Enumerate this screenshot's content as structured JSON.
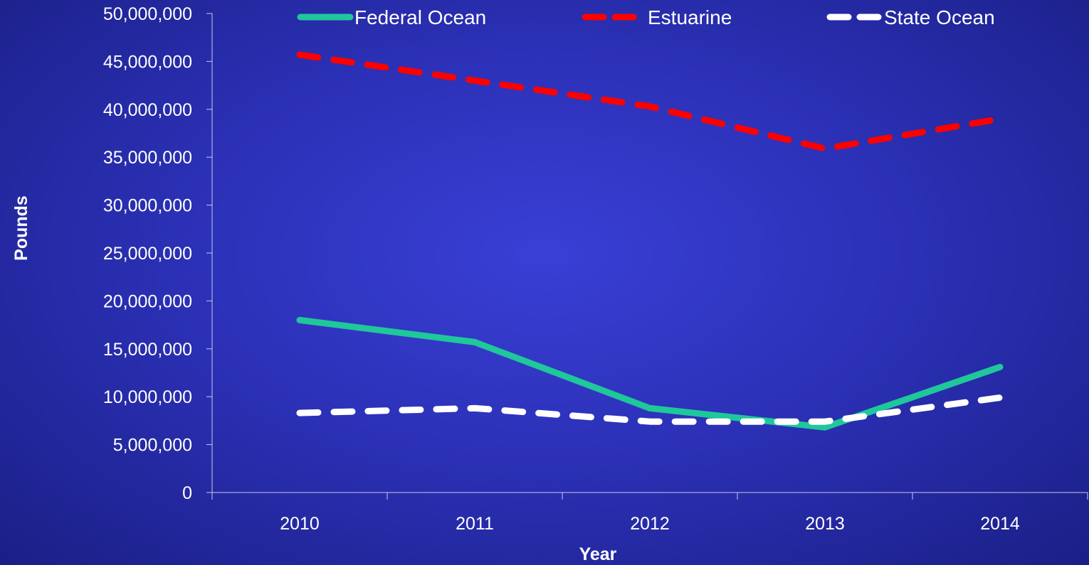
{
  "chart_data": {
    "type": "line",
    "title": "",
    "xlabel": "Year",
    "ylabel": "Pounds",
    "categories": [
      "2010",
      "2011",
      "2012",
      "2013",
      "2014"
    ],
    "ylim": [
      0,
      50000000
    ],
    "y_ticks": [
      0,
      5000000,
      10000000,
      15000000,
      20000000,
      25000000,
      30000000,
      35000000,
      40000000,
      45000000,
      50000000
    ],
    "y_tick_labels": [
      "0",
      "5,000,000",
      "10,000,000",
      "15,000,000",
      "20,000,000",
      "25,000,000",
      "30,000,000",
      "35,000,000",
      "40,000,000",
      "45,000,000",
      "50,000,000"
    ],
    "grid": false,
    "legend_position": "top",
    "series": [
      {
        "name": "Federal Ocean",
        "values": [
          18000000,
          15700000,
          8800000,
          6800000,
          13100000
        ],
        "color": "#1fc79a",
        "style": "solid"
      },
      {
        "name": "Estuarine",
        "values": [
          45700000,
          43000000,
          40300000,
          35900000,
          39000000
        ],
        "color": "#ff0000",
        "style": "dashed"
      },
      {
        "name": "State Ocean",
        "values": [
          8300000,
          8800000,
          7400000,
          7400000,
          9900000
        ],
        "color": "#ffffff",
        "style": "dashed"
      }
    ]
  }
}
